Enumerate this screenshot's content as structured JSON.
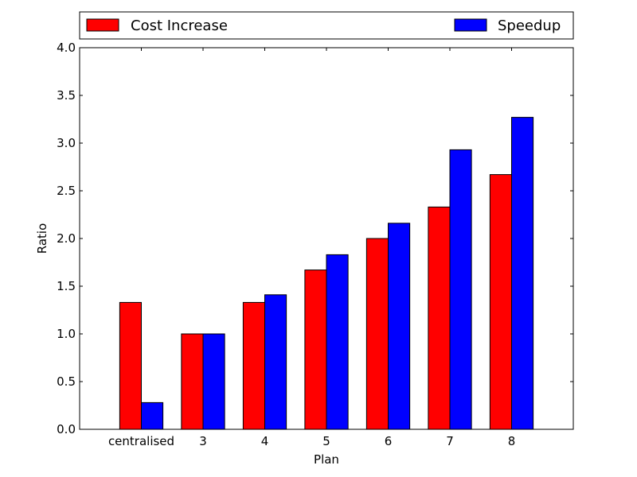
{
  "chart_data": {
    "type": "bar",
    "categories": [
      "centralised",
      "3",
      "4",
      "5",
      "6",
      "7",
      "8"
    ],
    "series": [
      {
        "name": "Cost Increase",
        "color": "#ff0000",
        "values": [
          1.33,
          1.0,
          1.33,
          1.67,
          2.0,
          2.33,
          2.67
        ]
      },
      {
        "name": "Speedup",
        "color": "#0000ff",
        "values": [
          0.28,
          1.0,
          1.41,
          1.83,
          2.16,
          2.93,
          3.27
        ]
      }
    ],
    "title": "",
    "xlabel": "Plan",
    "ylabel": "Ratio",
    "ylim": [
      0,
      4.0
    ],
    "yticks": [
      "0.0",
      "0.5",
      "1.0",
      "1.5",
      "2.0",
      "2.5",
      "3.0",
      "3.5",
      "4.0"
    ],
    "legend_position": "top (above plot, spanning full width)",
    "grid": false
  }
}
